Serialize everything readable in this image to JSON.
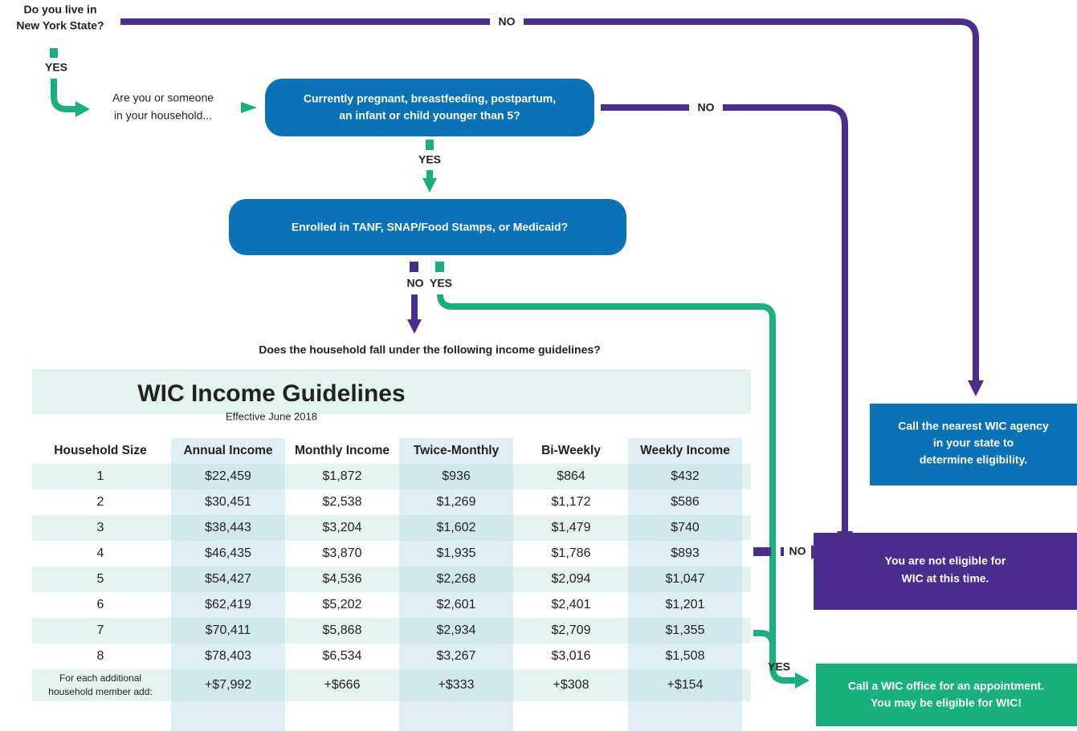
{
  "q1": {
    "lines": [
      "Do you live in",
      "New York State?"
    ],
    "no": "NO",
    "yes": "YES"
  },
  "q2": {
    "prompt": [
      "Are you or someone",
      "in your household..."
    ],
    "box": [
      "Currently pregnant, breastfeeding, postpartum,",
      "an infant or child younger than 5?"
    ],
    "no": "NO",
    "yes": "YES"
  },
  "q3": {
    "box": "Enrolled in TANF, SNAP/Food Stamps, or Medicaid?",
    "no": "NO",
    "yes": "YES"
  },
  "q4": {
    "question": "Does the household fall under the following income guidelines?",
    "no": "NO",
    "yes": "YES"
  },
  "table": {
    "title": "WIC Income Guidelines",
    "subtitle": "Effective June 2018",
    "headers": [
      "Household Size",
      "Annual Income",
      "Monthly Income",
      "Twice-Monthly",
      "Bi-Weekly",
      "Weekly Income"
    ],
    "rows": [
      [
        "1",
        "$22,459",
        "$1,872",
        "$936",
        "$864",
        "$432"
      ],
      [
        "2",
        "$30,451",
        "$2,538",
        "$1,269",
        "$1,172",
        "$586"
      ],
      [
        "3",
        "$38,443",
        "$3,204",
        "$1,602",
        "$1,479",
        "$740"
      ],
      [
        "4",
        "$46,435",
        "$3,870",
        "$1,935",
        "$1,786",
        "$893"
      ],
      [
        "5",
        "$54,427",
        "$4,536",
        "$2,268",
        "$2,094",
        "$1,047"
      ],
      [
        "6",
        "$62,419",
        "$5,202",
        "$2,601",
        "$2,401",
        "$1,201"
      ],
      [
        "7",
        "$70,411",
        "$5,868",
        "$2,934",
        "$2,709",
        "$1,355"
      ],
      [
        "8",
        "$78,403",
        "$6,534",
        "$3,267",
        "$3,016",
        "$1,508"
      ]
    ],
    "additional": {
      "label": [
        "For each additional",
        "household member add:"
      ],
      "values": [
        "+$7,992",
        "+$666",
        "+$333",
        "+$308",
        "+$154"
      ]
    }
  },
  "outcomes": {
    "call_agency": [
      "Call the nearest WIC agency",
      "in your state to",
      "determine eligibility."
    ],
    "not_eligible": [
      "You are not eligible for",
      "WIC at this time."
    ],
    "may_be_eligible": [
      "Call a WIC office for an appointment.",
      "You may be eligible for WIC!"
    ]
  }
}
